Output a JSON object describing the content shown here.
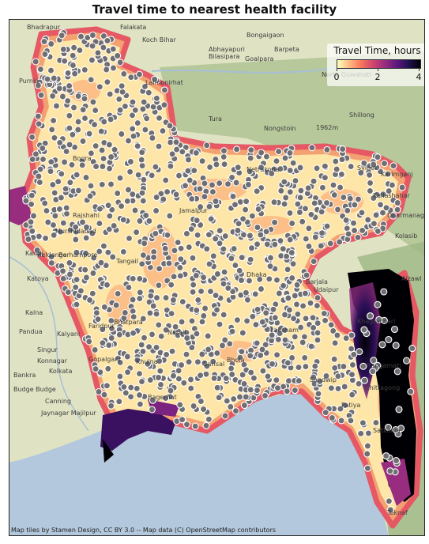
{
  "title": "Travel time to nearest health facility",
  "legend": {
    "title": "Travel Time, hours",
    "ticks": [
      "0",
      "2",
      "4"
    ],
    "colormap": [
      "#fcfdbf",
      "#febb81",
      "#f8765c",
      "#d3436e",
      "#982d80",
      "#5f187f",
      "#221150",
      "#000004"
    ]
  },
  "attribution": "Map tiles by Stamen Design, CC BY 3.0 -- Map data (C) OpenStreetMap contributors",
  "colors": {
    "water": "#b3c8dc",
    "land": "#dfe3c3",
    "forest": "#a9bf8e",
    "facility_fill": "#6e6e73",
    "facility_stroke": "#ffffff",
    "low_travel": "#fde6a8",
    "high_travel": "#000004"
  },
  "place_labels": [
    {
      "text": "Bhadrapur"
    },
    {
      "text": "Falakata"
    },
    {
      "text": "Koch Bihar"
    },
    {
      "text": "Bongaigaon"
    },
    {
      "text": "Abhayapuri"
    },
    {
      "text": "Barpeta"
    },
    {
      "text": "Bilasipara"
    },
    {
      "text": "Goalpara"
    },
    {
      "text": "North Guwahati"
    },
    {
      "text": "Tura"
    },
    {
      "text": "Nongstoin"
    },
    {
      "text": "Shillong"
    },
    {
      "text": "1962m"
    },
    {
      "text": "Purnia"
    },
    {
      "text": "Lalmonirhat"
    },
    {
      "text": "Dhaka"
    },
    {
      "text": "Rajshahi"
    },
    {
      "text": "Murshidabad"
    },
    {
      "text": "Berhampore"
    },
    {
      "text": "Beldanga"
    },
    {
      "text": "Kandi"
    },
    {
      "text": "Katoya"
    },
    {
      "text": "Kalna"
    },
    {
      "text": "Bhatpara"
    },
    {
      "text": "Kalyani"
    },
    {
      "text": "Pandua"
    },
    {
      "text": "Singur"
    },
    {
      "text": "Konnagar"
    },
    {
      "text": "Kolkata"
    },
    {
      "text": "Bankra"
    },
    {
      "text": "Budge Budge"
    },
    {
      "text": "Canning"
    },
    {
      "text": "Jaynagar Majilpur"
    },
    {
      "text": "Sylhet"
    },
    {
      "text": "Karimganj"
    },
    {
      "text": "Dharmanagar"
    },
    {
      "text": "Kailashahar"
    },
    {
      "text": "Kolasib"
    },
    {
      "text": "Aizawl"
    },
    {
      "text": "Barjala"
    },
    {
      "text": "Udaipur"
    },
    {
      "text": "Khagrachari"
    },
    {
      "text": "Rangamati"
    },
    {
      "text": "Chittagong"
    },
    {
      "text": "Sandwip"
    },
    {
      "text": "Bhola"
    },
    {
      "text": "Barisal"
    },
    {
      "text": "Patiya"
    },
    {
      "text": "Satkania"
    },
    {
      "text": "Teknaf"
    },
    {
      "text": "Narail"
    },
    {
      "text": "Gopalganj"
    },
    {
      "text": "Faridpur"
    },
    {
      "text": "Tangail"
    },
    {
      "text": "Netrakona"
    },
    {
      "text": "Bogra"
    },
    {
      "text": "Jamalpur"
    },
    {
      "text": "Bagerhat"
    },
    {
      "text": "Khulna"
    },
    {
      "text": "Laksham"
    }
  ]
}
